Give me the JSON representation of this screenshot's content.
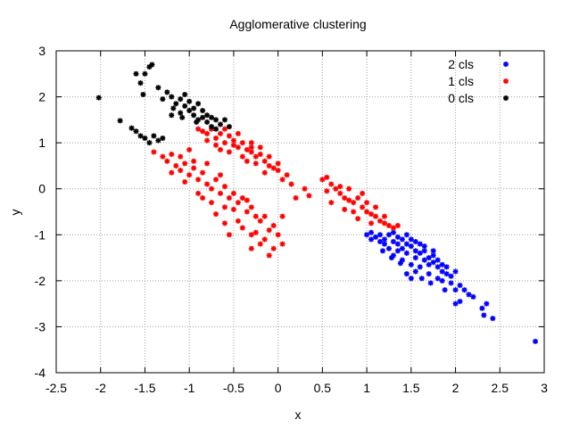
{
  "chart_data": {
    "type": "scatter",
    "title": "Agglomerative clustering",
    "xlabel": "x",
    "ylabel": "y",
    "xlim": [
      -2.5,
      3
    ],
    "ylim": [
      -4,
      3
    ],
    "x_ticks": [
      "-2.5",
      "-2",
      "-1.5",
      "-1",
      "-0.5",
      "0",
      "0.5",
      "1",
      "1.5",
      "2",
      "2.5",
      "3"
    ],
    "y_ticks": [
      "-4",
      "-3",
      "-2",
      "-1",
      "0",
      "1",
      "2",
      "3"
    ],
    "grid": true,
    "legend_position": "top-right",
    "series": [
      {
        "name": "2 cls",
        "color": "#0000ff",
        "points": [
          [
            1.0,
            -1.0
          ],
          [
            1.05,
            -0.95
          ],
          [
            1.1,
            -1.05
          ],
          [
            1.15,
            -1.0
          ],
          [
            1.2,
            -1.1
          ],
          [
            1.25,
            -1.0
          ],
          [
            1.3,
            -1.15
          ],
          [
            1.3,
            -0.95
          ],
          [
            1.35,
            -1.2
          ],
          [
            1.35,
            -1.05
          ],
          [
            1.4,
            -1.1
          ],
          [
            1.4,
            -1.3
          ],
          [
            1.45,
            -1.2
          ],
          [
            1.45,
            -1.4
          ],
          [
            1.5,
            -1.25
          ],
          [
            1.5,
            -1.1
          ],
          [
            1.55,
            -1.35
          ],
          [
            1.55,
            -1.5
          ],
          [
            1.6,
            -1.4
          ],
          [
            1.6,
            -1.2
          ],
          [
            1.65,
            -1.55
          ],
          [
            1.65,
            -1.35
          ],
          [
            1.7,
            -1.5
          ],
          [
            1.7,
            -1.65
          ],
          [
            1.75,
            -1.6
          ],
          [
            1.75,
            -1.45
          ],
          [
            1.8,
            -1.7
          ],
          [
            1.8,
            -1.55
          ],
          [
            1.85,
            -1.8
          ],
          [
            1.85,
            -1.65
          ],
          [
            1.9,
            -1.85
          ],
          [
            1.9,
            -1.7
          ],
          [
            1.25,
            -1.3
          ],
          [
            1.3,
            -1.45
          ],
          [
            1.4,
            -1.55
          ],
          [
            1.5,
            -1.65
          ],
          [
            1.2,
            -1.2
          ],
          [
            1.6,
            -1.7
          ],
          [
            1.7,
            -1.85
          ],
          [
            1.8,
            -1.95
          ],
          [
            1.45,
            -1.0
          ],
          [
            1.55,
            -1.15
          ],
          [
            1.65,
            -1.25
          ],
          [
            1.75,
            -1.35
          ],
          [
            1.35,
            -1.35
          ],
          [
            1.15,
            -1.15
          ],
          [
            1.5,
            -1.95
          ],
          [
            1.55,
            -1.8
          ],
          [
            1.95,
            -1.9
          ],
          [
            2.0,
            -1.8
          ],
          [
            2.05,
            -2.1
          ],
          [
            2.0,
            -2.2
          ],
          [
            1.95,
            -2.05
          ],
          [
            2.1,
            -2.2
          ],
          [
            1.85,
            -2.0
          ],
          [
            1.88,
            -2.2
          ],
          [
            2.0,
            -2.5
          ],
          [
            2.05,
            -2.45
          ],
          [
            2.15,
            -2.3
          ],
          [
            2.2,
            -2.35
          ],
          [
            2.35,
            -2.5
          ],
          [
            2.3,
            -2.6
          ],
          [
            2.32,
            -2.75
          ],
          [
            2.42,
            -2.82
          ],
          [
            2.9,
            -3.32
          ],
          [
            1.45,
            -1.85
          ],
          [
            1.62,
            -1.95
          ],
          [
            1.72,
            -2.05
          ],
          [
            1.38,
            -1.62
          ],
          [
            1.28,
            -1.5
          ],
          [
            1.18,
            -1.35
          ],
          [
            1.05,
            -1.1
          ]
        ]
      },
      {
        "name": "1 cls",
        "color": "#ff0000",
        "points": [
          [
            -0.9,
            1.3
          ],
          [
            -0.85,
            1.25
          ],
          [
            -0.8,
            1.2
          ],
          [
            -0.75,
            1.3
          ],
          [
            -0.7,
            1.1
          ],
          [
            -0.65,
            1.2
          ],
          [
            -0.6,
            1.0
          ],
          [
            -0.55,
            1.15
          ],
          [
            -0.5,
            1.05
          ],
          [
            -0.45,
            0.9
          ],
          [
            -0.4,
            1.0
          ],
          [
            -0.35,
            0.85
          ],
          [
            -0.3,
            0.8
          ],
          [
            -0.25,
            0.7
          ],
          [
            -0.2,
            0.75
          ],
          [
            -0.15,
            0.6
          ],
          [
            -0.1,
            0.5
          ],
          [
            -0.05,
            0.45
          ],
          [
            0.0,
            0.4
          ],
          [
            0.05,
            0.2
          ],
          [
            0.1,
            0.3
          ],
          [
            -0.3,
            1.0
          ],
          [
            -0.2,
            0.9
          ],
          [
            -0.45,
            1.2
          ],
          [
            -0.6,
            1.3
          ],
          [
            -0.7,
            0.95
          ],
          [
            -0.55,
            0.8
          ],
          [
            -0.4,
            0.7
          ],
          [
            -0.25,
            0.55
          ],
          [
            -0.15,
            0.35
          ],
          [
            0.15,
            0.1
          ],
          [
            0.3,
            0.0
          ],
          [
            0.2,
            -0.2
          ],
          [
            -0.35,
            0.6
          ],
          [
            -0.5,
            0.95
          ],
          [
            -0.8,
            1.05
          ],
          [
            -0.65,
            0.85
          ],
          [
            -0.1,
            0.7
          ],
          [
            0.0,
            0.55
          ],
          [
            -0.3,
            0.9
          ],
          [
            -1.4,
            0.8
          ],
          [
            -1.3,
            0.7
          ],
          [
            -1.25,
            0.6
          ],
          [
            -1.2,
            0.75
          ],
          [
            -1.15,
            0.5
          ],
          [
            -1.1,
            0.4
          ],
          [
            -1.05,
            0.55
          ],
          [
            -1.0,
            0.3
          ],
          [
            -0.95,
            0.45
          ],
          [
            -0.9,
            0.2
          ],
          [
            -0.85,
            0.35
          ],
          [
            -0.8,
            0.1
          ],
          [
            -0.75,
            0.0
          ],
          [
            -0.7,
            0.2
          ],
          [
            -0.65,
            -0.1
          ],
          [
            -0.6,
            0.05
          ],
          [
            -0.55,
            -0.2
          ],
          [
            -0.5,
            -0.1
          ],
          [
            -0.45,
            -0.3
          ],
          [
            -0.4,
            -0.2
          ],
          [
            -0.35,
            -0.5
          ],
          [
            -0.3,
            -0.4
          ],
          [
            -0.25,
            -0.6
          ],
          [
            -0.2,
            -0.7
          ],
          [
            -0.15,
            -0.6
          ],
          [
            -0.1,
            -0.9
          ],
          [
            -0.05,
            -0.8
          ],
          [
            0.0,
            -1.0
          ],
          [
            0.05,
            -1.2
          ],
          [
            -0.05,
            -1.3
          ],
          [
            -0.15,
            -1.1
          ],
          [
            -0.3,
            -1.0
          ],
          [
            -0.45,
            -0.7
          ],
          [
            -0.6,
            -0.4
          ],
          [
            -0.75,
            -0.3
          ],
          [
            -0.9,
            -0.1
          ],
          [
            -1.05,
            0.15
          ],
          [
            -1.2,
            0.35
          ],
          [
            -0.95,
            0.6
          ],
          [
            -1.1,
            0.7
          ],
          [
            -0.5,
            -0.45
          ],
          [
            -0.7,
            -0.55
          ],
          [
            -0.4,
            -0.85
          ],
          [
            -0.2,
            -1.2
          ],
          [
            -0.1,
            -1.45
          ],
          [
            -0.6,
            -0.75
          ],
          [
            -0.85,
            -0.2
          ],
          [
            -0.55,
            -1.0
          ],
          [
            -0.35,
            -0.25
          ],
          [
            -0.65,
            0.3
          ],
          [
            -0.8,
            0.55
          ],
          [
            -1.0,
            0.85
          ],
          [
            -0.25,
            -0.95
          ],
          [
            0.05,
            -0.6
          ],
          [
            -0.3,
            -1.3
          ],
          [
            0.35,
            -0.15
          ],
          [
            0.5,
            0.2
          ],
          [
            0.55,
            0.25
          ],
          [
            0.6,
            0.1
          ],
          [
            0.65,
            0.0
          ],
          [
            0.7,
            -0.1
          ],
          [
            0.75,
            -0.2
          ],
          [
            0.8,
            0.0
          ],
          [
            0.85,
            -0.3
          ],
          [
            0.9,
            -0.2
          ],
          [
            0.95,
            -0.4
          ],
          [
            1.0,
            -0.5
          ],
          [
            1.05,
            -0.55
          ],
          [
            1.1,
            -0.6
          ],
          [
            1.15,
            -0.7
          ],
          [
            1.2,
            -0.75
          ],
          [
            1.25,
            -0.8
          ],
          [
            1.3,
            -0.85
          ],
          [
            0.95,
            -0.1
          ],
          [
            1.0,
            -0.3
          ],
          [
            0.85,
            -0.5
          ],
          [
            0.75,
            -0.45
          ],
          [
            1.1,
            -0.4
          ],
          [
            0.6,
            -0.3
          ],
          [
            0.9,
            -0.65
          ],
          [
            1.05,
            -0.75
          ],
          [
            1.2,
            -0.6
          ],
          [
            0.7,
            0.05
          ],
          [
            1.35,
            -0.8
          ],
          [
            0.55,
            -0.05
          ],
          [
            0.8,
            -0.25
          ]
        ]
      },
      {
        "name": "0 cls",
        "color": "#000000",
        "points": [
          [
            -2.02,
            1.98
          ],
          [
            -1.78,
            1.48
          ],
          [
            -1.65,
            1.32
          ],
          [
            -1.6,
            1.25
          ],
          [
            -1.55,
            1.15
          ],
          [
            -1.5,
            1.1
          ],
          [
            -1.45,
            1.0
          ],
          [
            -1.4,
            1.15
          ],
          [
            -1.35,
            1.05
          ],
          [
            -1.3,
            1.1
          ],
          [
            -1.42,
            2.7
          ],
          [
            -1.45,
            2.65
          ],
          [
            -1.5,
            2.5
          ],
          [
            -1.55,
            2.3
          ],
          [
            -1.6,
            2.5
          ],
          [
            -1.52,
            2.05
          ],
          [
            -1.35,
            2.2
          ],
          [
            -1.3,
            1.95
          ],
          [
            -1.25,
            2.1
          ],
          [
            -1.2,
            2.0
          ],
          [
            -1.15,
            1.85
          ],
          [
            -1.1,
            1.95
          ],
          [
            -1.05,
            1.8
          ],
          [
            -1.0,
            1.7
          ],
          [
            -1.05,
            2.05
          ],
          [
            -0.95,
            1.6
          ],
          [
            -0.9,
            1.5
          ],
          [
            -0.85,
            1.55
          ],
          [
            -0.8,
            1.45
          ],
          [
            -0.75,
            1.35
          ],
          [
            -0.7,
            1.5
          ],
          [
            -0.65,
            1.4
          ],
          [
            -0.9,
            1.85
          ],
          [
            -0.85,
            1.7
          ],
          [
            -0.8,
            1.6
          ],
          [
            -1.0,
            1.9
          ],
          [
            -1.2,
            1.6
          ],
          [
            -1.1,
            1.65
          ],
          [
            -0.95,
            1.75
          ],
          [
            -0.75,
            1.55
          ],
          [
            -0.7,
            1.3
          ],
          [
            -0.6,
            1.5
          ],
          [
            -0.55,
            1.35
          ],
          [
            -0.92,
            1.45
          ],
          [
            -1.08,
            1.55
          ],
          [
            -1.18,
            1.75
          ]
        ]
      }
    ]
  }
}
